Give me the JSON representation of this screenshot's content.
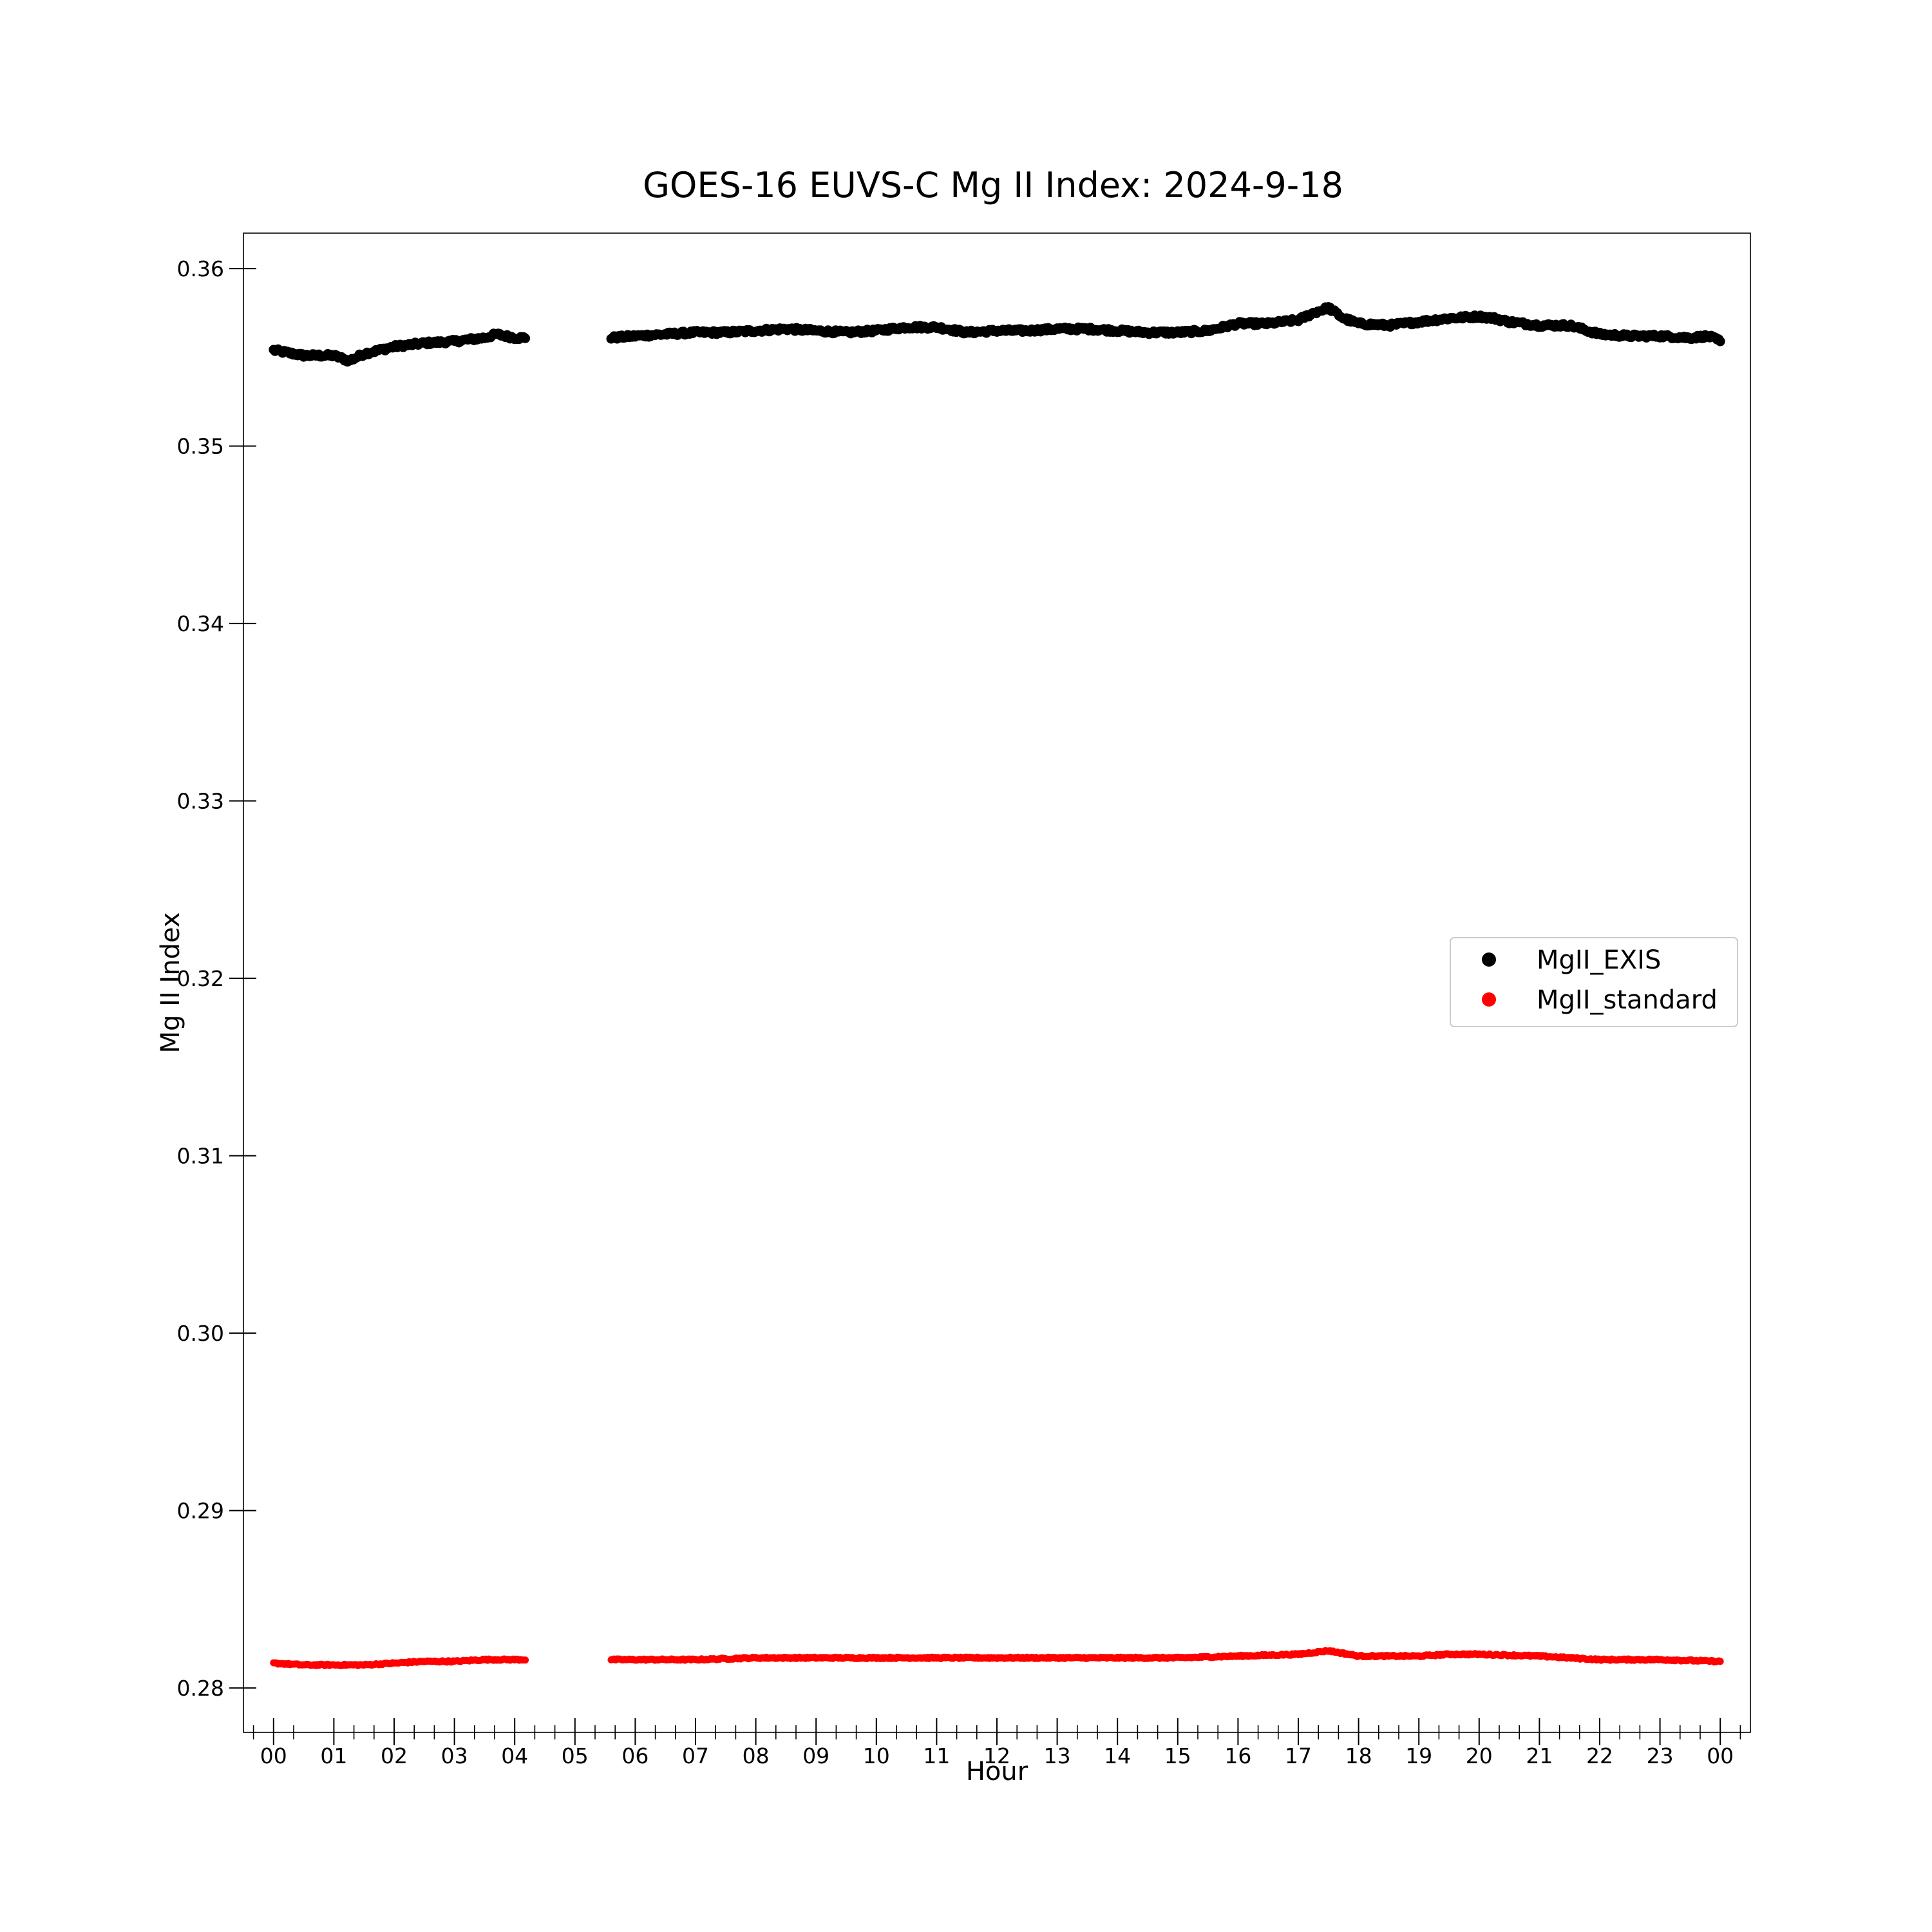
{
  "chart_data": {
    "type": "scatter",
    "title": "GOES-16 EUVS-C Mg II Index: 2024-9-18",
    "xlabel": "Hour",
    "ylabel": "Mg II Index",
    "xlim": [
      -0.5,
      24.5
    ],
    "ylim": [
      0.2775,
      0.362
    ],
    "x_ticks": [
      0,
      1,
      2,
      3,
      4,
      5,
      6,
      7,
      8,
      9,
      10,
      11,
      12,
      13,
      14,
      15,
      16,
      17,
      18,
      19,
      20,
      21,
      22,
      23,
      24
    ],
    "x_tick_labels": [
      "00",
      "01",
      "02",
      "03",
      "04",
      "05",
      "06",
      "07",
      "08",
      "09",
      "10",
      "11",
      "12",
      "13",
      "14",
      "15",
      "16",
      "17",
      "18",
      "19",
      "20",
      "21",
      "22",
      "23",
      "00"
    ],
    "y_ticks": [
      0.28,
      0.29,
      0.3,
      0.31,
      0.32,
      0.33,
      0.34,
      0.35,
      0.36
    ],
    "y_tick_labels": [
      "0.28",
      "0.29",
      "0.30",
      "0.31",
      "0.32",
      "0.33",
      "0.34",
      "0.35",
      "0.36"
    ],
    "grid": false,
    "legend": "center-right",
    "data_gap_hours": [
      4.25,
      5.6
    ],
    "series": [
      {
        "name": "MgII_EXIS",
        "color": "#000000",
        "x": [
          0,
          0.5,
          1,
          1.25,
          1.5,
          2,
          2.5,
          3,
          3.5,
          3.7,
          4,
          4.2,
          5.6,
          6,
          6.5,
          7,
          7.5,
          8,
          8.5,
          9,
          9.5,
          10,
          10.5,
          11,
          11.5,
          12,
          12.5,
          13,
          13.5,
          14,
          14.5,
          15,
          15.5,
          16,
          16.5,
          17,
          17.25,
          17.5,
          17.75,
          18,
          18.5,
          19,
          19.5,
          20,
          20.25,
          20.5,
          21,
          21.5,
          22,
          22.5,
          23,
          23.5,
          23.8,
          24
        ],
        "y": [
          0.3554,
          0.3551,
          0.3551,
          0.3548,
          0.3552,
          0.3556,
          0.3558,
          0.3559,
          0.3561,
          0.3563,
          0.3561,
          0.3561,
          0.3561,
          0.3562,
          0.3563,
          0.3564,
          0.3564,
          0.3565,
          0.3566,
          0.3565,
          0.3564,
          0.3565,
          0.3567,
          0.3567,
          0.3564,
          0.3565,
          0.3565,
          0.3566,
          0.3566,
          0.3565,
          0.3564,
          0.3564,
          0.3565,
          0.3569,
          0.3569,
          0.3571,
          0.3575,
          0.3578,
          0.3572,
          0.3569,
          0.3568,
          0.357,
          0.3572,
          0.3573,
          0.3572,
          0.357,
          0.3568,
          0.3568,
          0.3563,
          0.3562,
          0.3562,
          0.3561,
          0.3562,
          0.3559
        ]
      },
      {
        "name": "MgII_standard",
        "color": "#ff0000",
        "x": [
          0,
          0.5,
          1,
          1.5,
          2,
          2.5,
          3,
          3.5,
          4,
          4.2,
          5.6,
          6,
          7,
          8,
          8.5,
          9,
          10,
          11,
          12,
          13,
          14,
          15,
          16,
          17,
          17.5,
          18,
          19,
          19.5,
          20,
          21,
          22,
          23,
          24
        ],
        "y": [
          0.2814,
          0.2813,
          0.2813,
          0.2813,
          0.2814,
          0.2815,
          0.2815,
          0.2816,
          0.2816,
          0.2816,
          0.2816,
          0.2816,
          0.2816,
          0.2817,
          0.2817,
          0.2817,
          0.2817,
          0.2817,
          0.2817,
          0.2817,
          0.2817,
          0.2817,
          0.2818,
          0.2819,
          0.2821,
          0.2818,
          0.2818,
          0.2819,
          0.2819,
          0.2818,
          0.2816,
          0.2816,
          0.2815
        ]
      }
    ]
  }
}
